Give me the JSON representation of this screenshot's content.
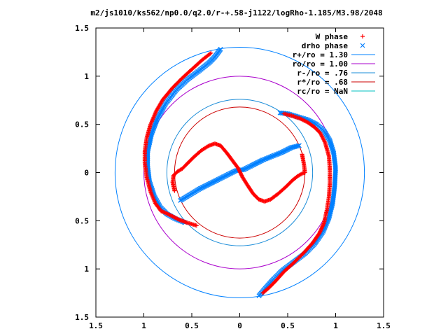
{
  "chart_data": {
    "type": "scatter",
    "title": "m2/js1010/ks562/np0.0/q2.0/r-+.58-j1122/logRho-1.185/M3.98/2048",
    "xlabel": "",
    "ylabel": "",
    "xlim": [
      -1.5,
      1.5
    ],
    "ylim": [
      -1.5,
      1.5
    ],
    "grid": false,
    "legend_position": "top-right",
    "x_ticks": [
      {
        "value": -1.5,
        "label": "1.5"
      },
      {
        "value": -1.0,
        "label": "1"
      },
      {
        "value": -0.5,
        "label": "0.5"
      },
      {
        "value": 0.0,
        "label": "0"
      },
      {
        "value": 0.5,
        "label": "0.5"
      },
      {
        "value": 1.0,
        "label": "1"
      },
      {
        "value": 1.5,
        "label": "1.5"
      }
    ],
    "y_ticks": [
      {
        "value": -1.5,
        "label": "1.5"
      },
      {
        "value": -1.0,
        "label": "1"
      },
      {
        "value": -0.5,
        "label": "0.5"
      },
      {
        "value": 0.0,
        "label": "0"
      },
      {
        "value": 0.5,
        "label": "0.5"
      },
      {
        "value": 1.0,
        "label": "1"
      },
      {
        "value": 1.5,
        "label": "1.5"
      }
    ],
    "series": [
      {
        "name": "W phase",
        "kind": "points",
        "marker": "plus",
        "color": "#ff0000",
        "segments": [
          [
            [
              -0.82,
              -0.4
            ],
            [
              -0.88,
              -0.32
            ],
            [
              -0.93,
              -0.2
            ],
            [
              -0.97,
              -0.05
            ],
            [
              -0.99,
              0.1
            ],
            [
              -0.99,
              0.22
            ],
            [
              -0.97,
              0.36
            ],
            [
              -0.93,
              0.5
            ],
            [
              -0.87,
              0.64
            ],
            [
              -0.8,
              0.76
            ],
            [
              -0.7,
              0.88
            ],
            [
              -0.6,
              0.98
            ],
            [
              -0.49,
              1.08
            ],
            [
              -0.39,
              1.17
            ],
            [
              -0.3,
              1.24
            ]
          ],
          [
            [
              -0.45,
              -0.55
            ],
            [
              -0.55,
              -0.52
            ],
            [
              -0.63,
              -0.49
            ],
            [
              -0.71,
              -0.45
            ],
            [
              -0.77,
              -0.42
            ],
            [
              -0.82,
              -0.4
            ]
          ],
          [
            [
              -0.68,
              -0.19
            ],
            [
              -0.7,
              -0.1
            ],
            [
              -0.69,
              -0.03
            ],
            [
              -0.65,
              0.01
            ],
            [
              -0.6,
              0.04
            ],
            [
              -0.55,
              0.09
            ],
            [
              -0.48,
              0.16
            ],
            [
              -0.4,
              0.23
            ],
            [
              -0.32,
              0.28
            ],
            [
              -0.26,
              0.3
            ],
            [
              -0.2,
              0.28
            ],
            [
              -0.14,
              0.21
            ],
            [
              -0.08,
              0.13
            ],
            [
              -0.02,
              0.05
            ],
            [
              0.03,
              -0.05
            ],
            [
              0.08,
              -0.13
            ],
            [
              0.14,
              -0.22
            ],
            [
              0.2,
              -0.28
            ],
            [
              0.26,
              -0.3
            ],
            [
              0.32,
              -0.28
            ],
            [
              0.4,
              -0.22
            ],
            [
              0.48,
              -0.15
            ],
            [
              0.55,
              -0.08
            ],
            [
              0.6,
              -0.04
            ],
            [
              0.65,
              -0.01
            ],
            [
              0.68,
              0.0
            ],
            [
              0.67,
              0.08
            ],
            [
              0.65,
              0.19
            ]
          ],
          [
            [
              0.46,
              0.61
            ],
            [
              0.54,
              0.59
            ],
            [
              0.63,
              0.56
            ],
            [
              0.71,
              0.52
            ],
            [
              0.78,
              0.47
            ],
            [
              0.84,
              0.41
            ],
            [
              0.89,
              0.31
            ],
            [
              0.93,
              0.17
            ],
            [
              0.94,
              0.03
            ],
            [
              0.94,
              -0.11
            ],
            [
              0.93,
              -0.25
            ],
            [
              0.91,
              -0.38
            ],
            [
              0.88,
              -0.52
            ],
            [
              0.83,
              -0.63
            ],
            [
              0.76,
              -0.73
            ],
            [
              0.67,
              -0.83
            ],
            [
              0.57,
              -0.93
            ],
            [
              0.46,
              -1.03
            ],
            [
              0.37,
              -1.13
            ],
            [
              0.3,
              -1.2
            ],
            [
              0.24,
              -1.25
            ]
          ]
        ]
      },
      {
        "name": "drho phase",
        "kind": "points",
        "marker": "cross",
        "color": "#0080ff",
        "segments": [
          [
            [
              -0.57,
              -0.52
            ],
            [
              -0.67,
              -0.48
            ],
            [
              -0.76,
              -0.43
            ],
            [
              -0.83,
              -0.36
            ],
            [
              -0.89,
              -0.25
            ],
            [
              -0.94,
              -0.1
            ],
            [
              -0.96,
              0.06
            ],
            [
              -0.96,
              0.22
            ],
            [
              -0.92,
              0.4
            ],
            [
              -0.86,
              0.56
            ],
            [
              -0.77,
              0.72
            ],
            [
              -0.66,
              0.86
            ],
            [
              -0.54,
              0.97
            ],
            [
              -0.42,
              1.06
            ],
            [
              -0.32,
              1.14
            ],
            [
              -0.26,
              1.2
            ],
            [
              -0.2,
              1.28
            ]
          ],
          [
            [
              -0.62,
              -0.29
            ],
            [
              -0.52,
              -0.23
            ],
            [
              -0.42,
              -0.17
            ],
            [
              -0.32,
              -0.12
            ],
            [
              -0.22,
              -0.07
            ],
            [
              -0.12,
              -0.02
            ],
            [
              -0.04,
              0.02
            ],
            [
              0.04,
              0.03
            ],
            [
              0.14,
              0.08
            ],
            [
              0.24,
              0.13
            ],
            [
              0.34,
              0.17
            ],
            [
              0.44,
              0.21
            ],
            [
              0.54,
              0.26
            ],
            [
              0.62,
              0.28
            ]
          ],
          [
            [
              0.42,
              0.62
            ],
            [
              0.5,
              0.61
            ],
            [
              0.6,
              0.58
            ],
            [
              0.7,
              0.55
            ],
            [
              0.8,
              0.5
            ],
            [
              0.88,
              0.43
            ],
            [
              0.94,
              0.33
            ],
            [
              0.98,
              0.2
            ],
            [
              1.0,
              0.04
            ],
            [
              0.99,
              -0.14
            ],
            [
              0.97,
              -0.31
            ],
            [
              0.93,
              -0.47
            ],
            [
              0.87,
              -0.61
            ],
            [
              0.78,
              -0.74
            ],
            [
              0.68,
              -0.84
            ],
            [
              0.56,
              -0.93
            ],
            [
              0.44,
              -1.02
            ],
            [
              0.34,
              -1.12
            ],
            [
              0.26,
              -1.21
            ],
            [
              0.2,
              -1.28
            ]
          ]
        ]
      },
      {
        "name": "r+/ro = 1.30",
        "kind": "circle",
        "radius": 1.3,
        "color": "#0080ff"
      },
      {
        "name": "ro/ro = 1.00",
        "kind": "circle",
        "radius": 1.0,
        "color": "#aa00cc"
      },
      {
        "name": "r-/ro = .76",
        "kind": "circle",
        "radius": 0.76,
        "color": "#1a8cd8"
      },
      {
        "name": "r*/ro = .68",
        "kind": "circle",
        "radius": 0.68,
        "color": "#cc0000"
      },
      {
        "name": "rc/ro = NaN",
        "kind": "circle",
        "radius": null,
        "color": "#00c0c0"
      }
    ]
  }
}
